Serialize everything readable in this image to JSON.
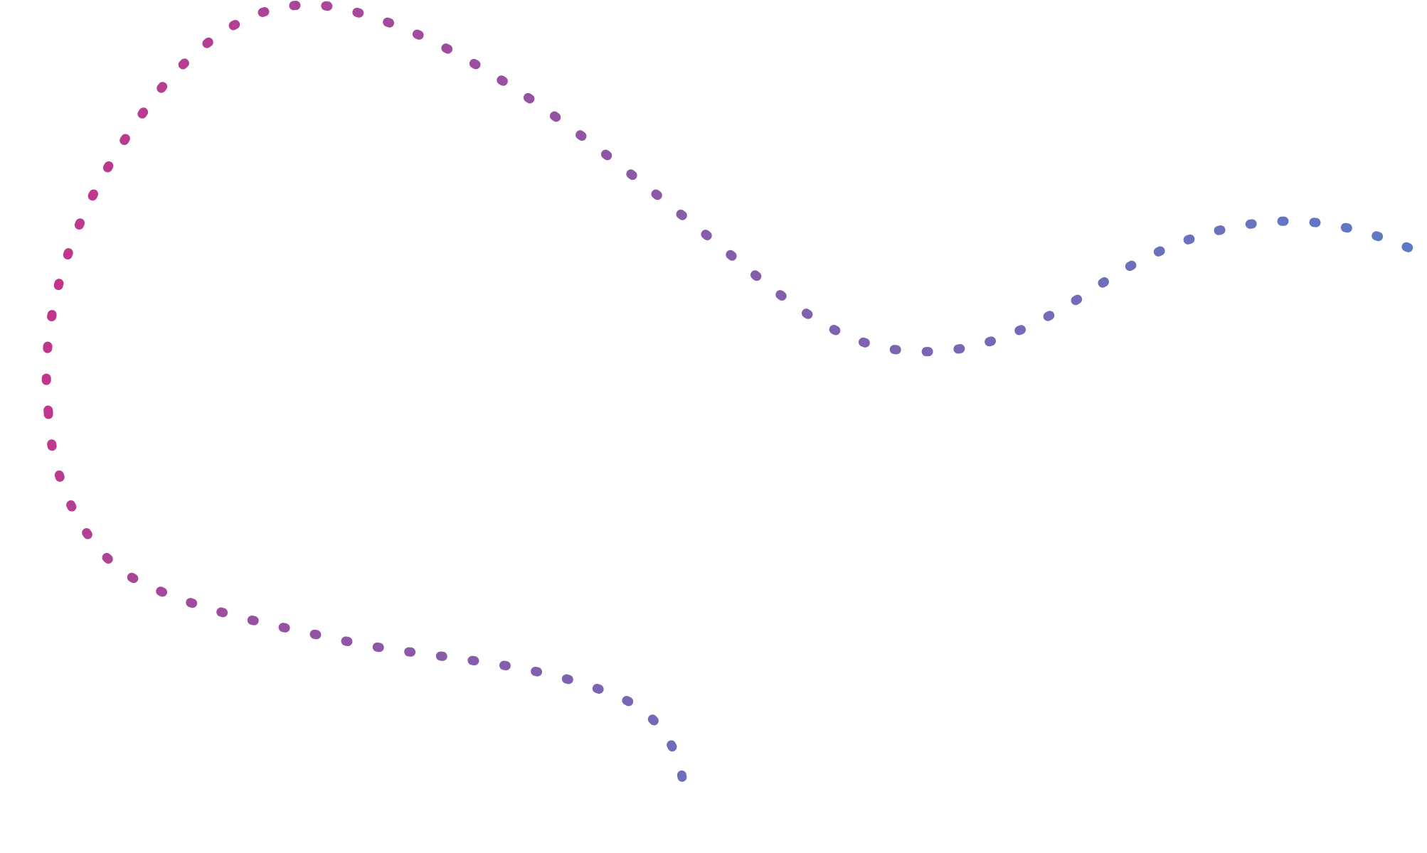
{
  "graphic": {
    "name": "dotted-gradient-curve",
    "colors": {
      "start": "#c2358c",
      "middle": "#8a5aa8",
      "end": "#5b7bc8"
    },
    "segments": [
      "upper-s-curve",
      "lower-hook-curve"
    ]
  }
}
